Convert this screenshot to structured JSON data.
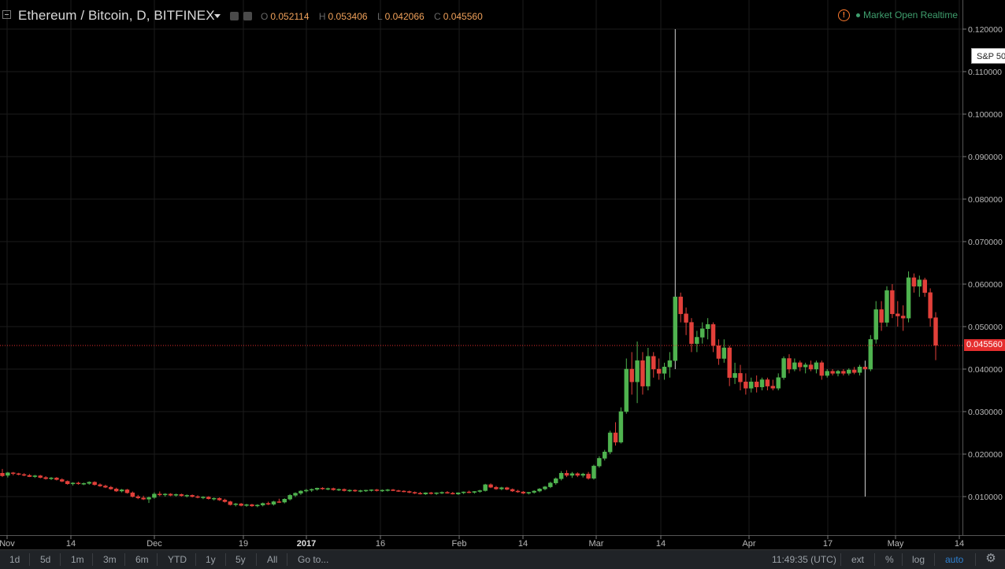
{
  "header": {
    "title": "Ethereum / Bitcoin, D, BITFINEX",
    "ohlc": [
      {
        "key": "O",
        "value": "0.052114"
      },
      {
        "key": "H",
        "value": "0.053406"
      },
      {
        "key": "L",
        "value": "0.042066"
      },
      {
        "key": "C",
        "value": "0.045560"
      }
    ],
    "warning_glyph": "!",
    "market_status": "Market Open Realtime"
  },
  "compare_badge": "S&P 50",
  "last_price_label": "0.045560",
  "colors": {
    "up": "#4fb34f",
    "down": "#e2403a",
    "grid": "#1b1b1b",
    "last_price_line": "#e52e2e",
    "market_status": "#3f9f6e",
    "warning": "#ff7b2e",
    "range_active": "#2d7fcf"
  },
  "chart_data": {
    "type": "candlestick",
    "ylim": [
      0.0,
      0.125
    ],
    "y_ticks": [
      "0.120000",
      "0.110000",
      "0.100000",
      "0.090000",
      "0.080000",
      "0.070000",
      "0.060000",
      "0.050000",
      "0.040000",
      "0.030000",
      "0.020000",
      "0.010000"
    ],
    "x_ticks": [
      "Nov",
      "14",
      "Dec",
      "19",
      "2017",
      "16",
      "Feb",
      "14",
      "Mar",
      "14",
      "Apr",
      "17",
      "May",
      "14"
    ],
    "x_tick_bold": [
      "2017"
    ],
    "last_price": 0.04556,
    "candles": [
      {
        "o": 0.0155,
        "h": 0.0165,
        "l": 0.0146,
        "c": 0.0149
      },
      {
        "o": 0.015,
        "h": 0.0158,
        "l": 0.0145,
        "c": 0.0156
      },
      {
        "o": 0.0156,
        "h": 0.0158,
        "l": 0.015,
        "c": 0.0154
      },
      {
        "o": 0.0154,
        "h": 0.0156,
        "l": 0.015,
        "c": 0.0152
      },
      {
        "o": 0.0152,
        "h": 0.0155,
        "l": 0.0148,
        "c": 0.015
      },
      {
        "o": 0.015,
        "h": 0.0153,
        "l": 0.0146,
        "c": 0.0147
      },
      {
        "o": 0.0147,
        "h": 0.0151,
        "l": 0.0144,
        "c": 0.0149
      },
      {
        "o": 0.0149,
        "h": 0.0151,
        "l": 0.0143,
        "c": 0.0145
      },
      {
        "o": 0.0145,
        "h": 0.0148,
        "l": 0.014,
        "c": 0.0142
      },
      {
        "o": 0.0142,
        "h": 0.0146,
        "l": 0.0139,
        "c": 0.0144
      },
      {
        "o": 0.0144,
        "h": 0.0146,
        "l": 0.0138,
        "c": 0.014
      },
      {
        "o": 0.014,
        "h": 0.0143,
        "l": 0.0134,
        "c": 0.0136
      },
      {
        "o": 0.0136,
        "h": 0.0138,
        "l": 0.0128,
        "c": 0.013
      },
      {
        "o": 0.013,
        "h": 0.0134,
        "l": 0.0126,
        "c": 0.0132
      },
      {
        "o": 0.0132,
        "h": 0.0135,
        "l": 0.0128,
        "c": 0.013
      },
      {
        "o": 0.013,
        "h": 0.0133,
        "l": 0.0127,
        "c": 0.0131
      },
      {
        "o": 0.0131,
        "h": 0.0136,
        "l": 0.0128,
        "c": 0.0134
      },
      {
        "o": 0.0134,
        "h": 0.0136,
        "l": 0.0126,
        "c": 0.0128
      },
      {
        "o": 0.0128,
        "h": 0.0131,
        "l": 0.0123,
        "c": 0.0125
      },
      {
        "o": 0.0125,
        "h": 0.0128,
        "l": 0.012,
        "c": 0.0122
      },
      {
        "o": 0.0122,
        "h": 0.0125,
        "l": 0.0116,
        "c": 0.0118
      },
      {
        "o": 0.0118,
        "h": 0.0121,
        "l": 0.0111,
        "c": 0.0113
      },
      {
        "o": 0.0113,
        "h": 0.0118,
        "l": 0.011,
        "c": 0.0116
      },
      {
        "o": 0.0116,
        "h": 0.0118,
        "l": 0.0107,
        "c": 0.0109
      },
      {
        "o": 0.0109,
        "h": 0.0112,
        "l": 0.0098,
        "c": 0.01
      },
      {
        "o": 0.01,
        "h": 0.0104,
        "l": 0.0094,
        "c": 0.0097
      },
      {
        "o": 0.0097,
        "h": 0.0102,
        "l": 0.0092,
        "c": 0.0094
      },
      {
        "o": 0.0094,
        "h": 0.01,
        "l": 0.0085,
        "c": 0.0098
      },
      {
        "o": 0.0098,
        "h": 0.011,
        "l": 0.0095,
        "c": 0.0106
      },
      {
        "o": 0.0106,
        "h": 0.0112,
        "l": 0.0101,
        "c": 0.0104
      },
      {
        "o": 0.0104,
        "h": 0.0108,
        "l": 0.01,
        "c": 0.0106
      },
      {
        "o": 0.0106,
        "h": 0.0108,
        "l": 0.0101,
        "c": 0.0103
      },
      {
        "o": 0.0103,
        "h": 0.0107,
        "l": 0.01,
        "c": 0.0105
      },
      {
        "o": 0.0105,
        "h": 0.0107,
        "l": 0.01,
        "c": 0.0102
      },
      {
        "o": 0.0102,
        "h": 0.0105,
        "l": 0.0098,
        "c": 0.0103
      },
      {
        "o": 0.0103,
        "h": 0.0105,
        "l": 0.0098,
        "c": 0.01
      },
      {
        "o": 0.01,
        "h": 0.0103,
        "l": 0.0096,
        "c": 0.0098
      },
      {
        "o": 0.0098,
        "h": 0.0101,
        "l": 0.0094,
        "c": 0.0099
      },
      {
        "o": 0.0099,
        "h": 0.0101,
        "l": 0.0093,
        "c": 0.0095
      },
      {
        "o": 0.0095,
        "h": 0.0098,
        "l": 0.0091,
        "c": 0.0096
      },
      {
        "o": 0.0096,
        "h": 0.0098,
        "l": 0.009,
        "c": 0.0092
      },
      {
        "o": 0.0092,
        "h": 0.0095,
        "l": 0.0086,
        "c": 0.0088
      },
      {
        "o": 0.0088,
        "h": 0.009,
        "l": 0.0079,
        "c": 0.0081
      },
      {
        "o": 0.0081,
        "h": 0.0085,
        "l": 0.0077,
        "c": 0.0083
      },
      {
        "o": 0.0083,
        "h": 0.0085,
        "l": 0.0077,
        "c": 0.0079
      },
      {
        "o": 0.0079,
        "h": 0.0083,
        "l": 0.0076,
        "c": 0.0081
      },
      {
        "o": 0.0081,
        "h": 0.0083,
        "l": 0.0076,
        "c": 0.0078
      },
      {
        "o": 0.0078,
        "h": 0.0082,
        "l": 0.0075,
        "c": 0.008
      },
      {
        "o": 0.008,
        "h": 0.0086,
        "l": 0.0077,
        "c": 0.0084
      },
      {
        "o": 0.0084,
        "h": 0.0088,
        "l": 0.008,
        "c": 0.0082
      },
      {
        "o": 0.0082,
        "h": 0.009,
        "l": 0.0079,
        "c": 0.0088
      },
      {
        "o": 0.0088,
        "h": 0.0095,
        "l": 0.0085,
        "c": 0.0087
      },
      {
        "o": 0.0087,
        "h": 0.0096,
        "l": 0.0084,
        "c": 0.0094
      },
      {
        "o": 0.0094,
        "h": 0.0106,
        "l": 0.0091,
        "c": 0.0103
      },
      {
        "o": 0.0103,
        "h": 0.011,
        "l": 0.0099,
        "c": 0.0108
      },
      {
        "o": 0.0108,
        "h": 0.0115,
        "l": 0.0104,
        "c": 0.0113
      },
      {
        "o": 0.0113,
        "h": 0.0118,
        "l": 0.011,
        "c": 0.0115
      },
      {
        "o": 0.0115,
        "h": 0.0119,
        "l": 0.0111,
        "c": 0.0117
      },
      {
        "o": 0.0117,
        "h": 0.0121,
        "l": 0.0114,
        "c": 0.012
      },
      {
        "o": 0.012,
        "h": 0.0122,
        "l": 0.0116,
        "c": 0.0118
      },
      {
        "o": 0.0118,
        "h": 0.0121,
        "l": 0.0115,
        "c": 0.0119
      },
      {
        "o": 0.0119,
        "h": 0.0121,
        "l": 0.0114,
        "c": 0.0116
      },
      {
        "o": 0.0116,
        "h": 0.0119,
        "l": 0.0113,
        "c": 0.0117
      },
      {
        "o": 0.0117,
        "h": 0.0119,
        "l": 0.0112,
        "c": 0.0114
      },
      {
        "o": 0.0114,
        "h": 0.0117,
        "l": 0.0111,
        "c": 0.0115
      },
      {
        "o": 0.0115,
        "h": 0.0117,
        "l": 0.0111,
        "c": 0.0113
      },
      {
        "o": 0.0113,
        "h": 0.0116,
        "l": 0.011,
        "c": 0.0114
      },
      {
        "o": 0.0114,
        "h": 0.0116,
        "l": 0.0111,
        "c": 0.0115
      },
      {
        "o": 0.0115,
        "h": 0.0117,
        "l": 0.0112,
        "c": 0.0116
      },
      {
        "o": 0.0116,
        "h": 0.0118,
        "l": 0.0112,
        "c": 0.0114
      },
      {
        "o": 0.0114,
        "h": 0.0117,
        "l": 0.0111,
        "c": 0.0115
      },
      {
        "o": 0.0115,
        "h": 0.0118,
        "l": 0.0112,
        "c": 0.0116
      },
      {
        "o": 0.0116,
        "h": 0.0118,
        "l": 0.0113,
        "c": 0.0114
      },
      {
        "o": 0.0114,
        "h": 0.0116,
        "l": 0.0111,
        "c": 0.0113
      },
      {
        "o": 0.0113,
        "h": 0.0115,
        "l": 0.011,
        "c": 0.0112
      },
      {
        "o": 0.0112,
        "h": 0.0114,
        "l": 0.0108,
        "c": 0.011
      },
      {
        "o": 0.011,
        "h": 0.0112,
        "l": 0.0106,
        "c": 0.0108
      },
      {
        "o": 0.0108,
        "h": 0.0111,
        "l": 0.0105,
        "c": 0.0106
      },
      {
        "o": 0.0106,
        "h": 0.011,
        "l": 0.0104,
        "c": 0.0109
      },
      {
        "o": 0.0109,
        "h": 0.0111,
        "l": 0.0105,
        "c": 0.0107
      },
      {
        "o": 0.0107,
        "h": 0.011,
        "l": 0.0104,
        "c": 0.0109
      },
      {
        "o": 0.0109,
        "h": 0.0112,
        "l": 0.0106,
        "c": 0.011
      },
      {
        "o": 0.011,
        "h": 0.0113,
        "l": 0.0107,
        "c": 0.0108
      },
      {
        "o": 0.0108,
        "h": 0.0111,
        "l": 0.0105,
        "c": 0.0106
      },
      {
        "o": 0.0106,
        "h": 0.011,
        "l": 0.0104,
        "c": 0.0109
      },
      {
        "o": 0.0109,
        "h": 0.0112,
        "l": 0.0106,
        "c": 0.0111
      },
      {
        "o": 0.0111,
        "h": 0.0114,
        "l": 0.0108,
        "c": 0.011
      },
      {
        "o": 0.011,
        "h": 0.0113,
        "l": 0.0107,
        "c": 0.0112
      },
      {
        "o": 0.0112,
        "h": 0.0116,
        "l": 0.0109,
        "c": 0.0114
      },
      {
        "o": 0.0114,
        "h": 0.013,
        "l": 0.0112,
        "c": 0.0128
      },
      {
        "o": 0.0128,
        "h": 0.0131,
        "l": 0.012,
        "c": 0.0122
      },
      {
        "o": 0.0122,
        "h": 0.0125,
        "l": 0.0116,
        "c": 0.0118
      },
      {
        "o": 0.0118,
        "h": 0.0123,
        "l": 0.0115,
        "c": 0.0121
      },
      {
        "o": 0.0121,
        "h": 0.0123,
        "l": 0.0115,
        "c": 0.0117
      },
      {
        "o": 0.0117,
        "h": 0.0119,
        "l": 0.0111,
        "c": 0.0113
      },
      {
        "o": 0.0113,
        "h": 0.0116,
        "l": 0.0109,
        "c": 0.0111
      },
      {
        "o": 0.0111,
        "h": 0.0113,
        "l": 0.0106,
        "c": 0.0108
      },
      {
        "o": 0.0108,
        "h": 0.0111,
        "l": 0.0105,
        "c": 0.011
      },
      {
        "o": 0.011,
        "h": 0.0115,
        "l": 0.0107,
        "c": 0.0113
      },
      {
        "o": 0.0113,
        "h": 0.012,
        "l": 0.011,
        "c": 0.0118
      },
      {
        "o": 0.0118,
        "h": 0.0125,
        "l": 0.0115,
        "c": 0.0123
      },
      {
        "o": 0.0123,
        "h": 0.0135,
        "l": 0.012,
        "c": 0.0132
      },
      {
        "o": 0.0132,
        "h": 0.0145,
        "l": 0.0128,
        "c": 0.0142
      },
      {
        "o": 0.0142,
        "h": 0.016,
        "l": 0.0138,
        "c": 0.0155
      },
      {
        "o": 0.0155,
        "h": 0.0162,
        "l": 0.0146,
        "c": 0.015
      },
      {
        "o": 0.015,
        "h": 0.0158,
        "l": 0.0144,
        "c": 0.0154
      },
      {
        "o": 0.0154,
        "h": 0.0157,
        "l": 0.0146,
        "c": 0.015
      },
      {
        "o": 0.015,
        "h": 0.0156,
        "l": 0.0145,
        "c": 0.0153
      },
      {
        "o": 0.0153,
        "h": 0.0158,
        "l": 0.014,
        "c": 0.0143
      },
      {
        "o": 0.0143,
        "h": 0.0175,
        "l": 0.014,
        "c": 0.0172
      },
      {
        "o": 0.0172,
        "h": 0.0195,
        "l": 0.0168,
        "c": 0.019
      },
      {
        "o": 0.019,
        "h": 0.021,
        "l": 0.0185,
        "c": 0.0205
      },
      {
        "o": 0.0205,
        "h": 0.0255,
        "l": 0.02,
        "c": 0.025
      },
      {
        "o": 0.025,
        "h": 0.0275,
        "l": 0.022,
        "c": 0.0228
      },
      {
        "o": 0.0228,
        "h": 0.031,
        "l": 0.0225,
        "c": 0.03
      },
      {
        "o": 0.03,
        "h": 0.0425,
        "l": 0.0295,
        "c": 0.04
      },
      {
        "o": 0.04,
        "h": 0.044,
        "l": 0.034,
        "c": 0.037
      },
      {
        "o": 0.037,
        "h": 0.0465,
        "l": 0.032,
        "c": 0.042
      },
      {
        "o": 0.042,
        "h": 0.044,
        "l": 0.034,
        "c": 0.036
      },
      {
        "o": 0.036,
        "h": 0.045,
        "l": 0.035,
        "c": 0.043
      },
      {
        "o": 0.043,
        "h": 0.044,
        "l": 0.038,
        "c": 0.04
      },
      {
        "o": 0.04,
        "h": 0.0425,
        "l": 0.0375,
        "c": 0.039
      },
      {
        "o": 0.039,
        "h": 0.0415,
        "l": 0.0375,
        "c": 0.0405
      },
      {
        "o": 0.0405,
        "h": 0.044,
        "l": 0.038,
        "c": 0.042
      },
      {
        "o": 0.042,
        "h": 0.12,
        "l": 0.04,
        "c": 0.057
      },
      {
        "o": 0.057,
        "h": 0.058,
        "l": 0.051,
        "c": 0.053
      },
      {
        "o": 0.053,
        "h": 0.0545,
        "l": 0.048,
        "c": 0.051
      },
      {
        "o": 0.051,
        "h": 0.052,
        "l": 0.044,
        "c": 0.046
      },
      {
        "o": 0.046,
        "h": 0.049,
        "l": 0.044,
        "c": 0.0475
      },
      {
        "o": 0.0475,
        "h": 0.051,
        "l": 0.046,
        "c": 0.0495
      },
      {
        "o": 0.0495,
        "h": 0.052,
        "l": 0.047,
        "c": 0.0505
      },
      {
        "o": 0.0505,
        "h": 0.051,
        "l": 0.044,
        "c": 0.0455
      },
      {
        "o": 0.0455,
        "h": 0.047,
        "l": 0.041,
        "c": 0.0425
      },
      {
        "o": 0.0425,
        "h": 0.047,
        "l": 0.0415,
        "c": 0.045
      },
      {
        "o": 0.045,
        "h": 0.0455,
        "l": 0.036,
        "c": 0.038
      },
      {
        "o": 0.038,
        "h": 0.0415,
        "l": 0.0365,
        "c": 0.039
      },
      {
        "o": 0.039,
        "h": 0.041,
        "l": 0.035,
        "c": 0.037
      },
      {
        "o": 0.037,
        "h": 0.039,
        "l": 0.034,
        "c": 0.0355
      },
      {
        "o": 0.0355,
        "h": 0.038,
        "l": 0.0345,
        "c": 0.037
      },
      {
        "o": 0.037,
        "h": 0.0385,
        "l": 0.0345,
        "c": 0.0358
      },
      {
        "o": 0.0358,
        "h": 0.038,
        "l": 0.035,
        "c": 0.0375
      },
      {
        "o": 0.0375,
        "h": 0.038,
        "l": 0.035,
        "c": 0.036
      },
      {
        "o": 0.036,
        "h": 0.0375,
        "l": 0.035,
        "c": 0.0355
      },
      {
        "o": 0.0355,
        "h": 0.039,
        "l": 0.035,
        "c": 0.038
      },
      {
        "o": 0.038,
        "h": 0.043,
        "l": 0.0375,
        "c": 0.0425
      },
      {
        "o": 0.0425,
        "h": 0.0435,
        "l": 0.039,
        "c": 0.04
      },
      {
        "o": 0.04,
        "h": 0.0425,
        "l": 0.0395,
        "c": 0.0415
      },
      {
        "o": 0.0415,
        "h": 0.042,
        "l": 0.0395,
        "c": 0.0405
      },
      {
        "o": 0.0405,
        "h": 0.0415,
        "l": 0.039,
        "c": 0.041
      },
      {
        "o": 0.041,
        "h": 0.042,
        "l": 0.0395,
        "c": 0.04
      },
      {
        "o": 0.04,
        "h": 0.042,
        "l": 0.039,
        "c": 0.0415
      },
      {
        "o": 0.0415,
        "h": 0.042,
        "l": 0.0375,
        "c": 0.0385
      },
      {
        "o": 0.0385,
        "h": 0.04,
        "l": 0.038,
        "c": 0.0395
      },
      {
        "o": 0.0395,
        "h": 0.04,
        "l": 0.0385,
        "c": 0.039
      },
      {
        "o": 0.039,
        "h": 0.0398,
        "l": 0.0383,
        "c": 0.0395
      },
      {
        "o": 0.0395,
        "h": 0.04,
        "l": 0.0385,
        "c": 0.039
      },
      {
        "o": 0.039,
        "h": 0.0402,
        "l": 0.0385,
        "c": 0.0398
      },
      {
        "o": 0.0398,
        "h": 0.0405,
        "l": 0.0388,
        "c": 0.0392
      },
      {
        "o": 0.0392,
        "h": 0.041,
        "l": 0.0385,
        "c": 0.0405
      },
      {
        "o": 0.0405,
        "h": 0.042,
        "l": 0.01,
        "c": 0.04
      },
      {
        "o": 0.04,
        "h": 0.048,
        "l": 0.0395,
        "c": 0.047
      },
      {
        "o": 0.047,
        "h": 0.056,
        "l": 0.046,
        "c": 0.054
      },
      {
        "o": 0.054,
        "h": 0.056,
        "l": 0.049,
        "c": 0.051
      },
      {
        "o": 0.051,
        "h": 0.0595,
        "l": 0.05,
        "c": 0.0585
      },
      {
        "o": 0.0585,
        "h": 0.06,
        "l": 0.052,
        "c": 0.053
      },
      {
        "o": 0.053,
        "h": 0.056,
        "l": 0.05,
        "c": 0.0525
      },
      {
        "o": 0.0525,
        "h": 0.055,
        "l": 0.049,
        "c": 0.052
      },
      {
        "o": 0.052,
        "h": 0.063,
        "l": 0.051,
        "c": 0.0615
      },
      {
        "o": 0.0615,
        "h": 0.0625,
        "l": 0.058,
        "c": 0.0595
      },
      {
        "o": 0.0595,
        "h": 0.062,
        "l": 0.057,
        "c": 0.061
      },
      {
        "o": 0.061,
        "h": 0.0615,
        "l": 0.057,
        "c": 0.058
      },
      {
        "o": 0.058,
        "h": 0.059,
        "l": 0.05,
        "c": 0.052
      },
      {
        "o": 0.0521,
        "h": 0.0534,
        "l": 0.0421,
        "c": 0.0456
      }
    ]
  },
  "toolbar": {
    "ranges": [
      "1d",
      "5d",
      "1m",
      "3m",
      "6m",
      "YTD",
      "1y",
      "5y",
      "All"
    ],
    "goto_label": "Go to...",
    "time": "11:49:35 (UTC)",
    "ext_label": "ext",
    "percent_label": "%",
    "log_label": "log",
    "auto_label": "auto",
    "settings_glyph": "⚙"
  }
}
